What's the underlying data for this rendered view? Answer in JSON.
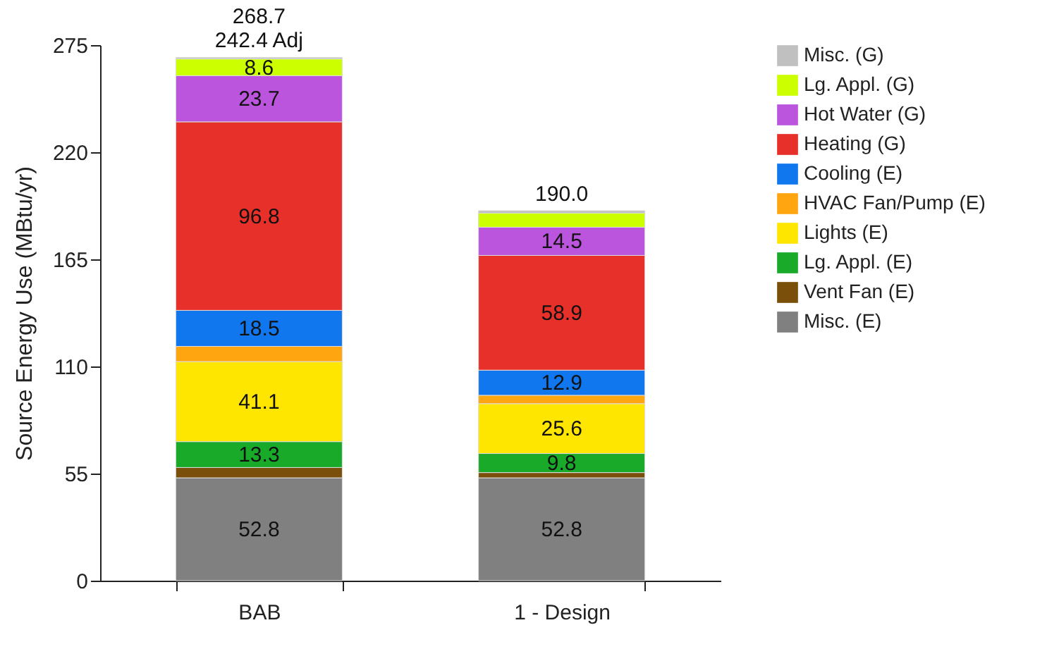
{
  "chart_data": {
    "type": "bar",
    "stacked": true,
    "ylabel": "Source Energy Use (MBtu/yr)",
    "categories": [
      "BAB",
      "1 - Design"
    ],
    "ylim": [
      0,
      275
    ],
    "yticks": [
      0,
      55,
      110,
      165,
      220,
      275
    ],
    "grid": false,
    "legend": "right",
    "totals": [
      "268.7\n242.4 Adj",
      "190.0"
    ],
    "series": [
      {
        "name": "Misc. (E)",
        "color": "#808080",
        "values": [
          52.8,
          52.8
        ],
        "value_labels": [
          "52.8",
          "52.8"
        ]
      },
      {
        "name": "Vent Fan (E)",
        "color": "#7a4f0a",
        "values": [
          5.3,
          2.7
        ],
        "value_labels": [
          null,
          null
        ]
      },
      {
        "name": "Lg. Appl. (E)",
        "color": "#1aaa2a",
        "values": [
          13.3,
          9.8
        ],
        "value_labels": [
          "13.3",
          "9.8"
        ]
      },
      {
        "name": "Lights (E)",
        "color": "#ffe600",
        "values": [
          41.1,
          25.6
        ],
        "value_labels": [
          "41.1",
          "25.6"
        ]
      },
      {
        "name": "HVAC Fan/Pump (E)",
        "color": "#ffa510",
        "values": [
          7.8,
          4.3
        ],
        "value_labels": [
          null,
          null
        ]
      },
      {
        "name": "Cooling (E)",
        "color": "#1177ee",
        "values": [
          18.5,
          12.9
        ],
        "value_labels": [
          "18.5",
          "12.9"
        ]
      },
      {
        "name": "Heating (G)",
        "color": "#e8302a",
        "values": [
          96.8,
          58.9
        ],
        "value_labels": [
          "96.8",
          "58.9"
        ]
      },
      {
        "name": "Hot Water (G)",
        "color": "#bb55dd",
        "values": [
          23.7,
          14.5
        ],
        "value_labels": [
          "23.7",
          "14.5"
        ]
      },
      {
        "name": "Lg. Appl. (G)",
        "color": "#ccff00",
        "values": [
          8.6,
          7.2
        ],
        "value_labels": [
          "8.6",
          null
        ]
      },
      {
        "name": "Misc. (G)",
        "color": "#c0c0c0",
        "values": [
          0.8,
          1.3
        ],
        "value_labels": [
          null,
          null
        ]
      }
    ]
  }
}
